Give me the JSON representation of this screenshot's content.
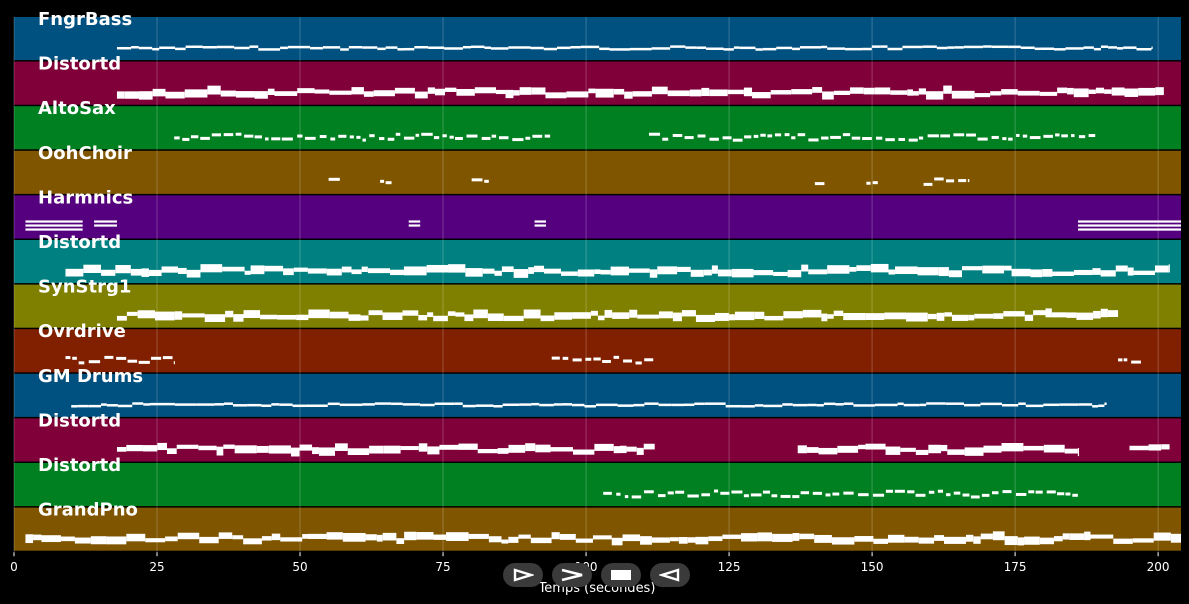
{
  "chart_data": {
    "type": "piano-roll",
    "xlabel": "Temps (secondes)",
    "xlim": [
      0,
      204
    ],
    "xticks": [
      0,
      25,
      50,
      75,
      100,
      125,
      150,
      175,
      200
    ],
    "grid": true,
    "tracks": [
      {
        "name": "FngrBass",
        "color": "#005080",
        "segments": [
          [
            18,
            199
          ]
        ],
        "style": "thin"
      },
      {
        "name": "Distortd",
        "color": "#80003a",
        "segments": [
          [
            18,
            201
          ]
        ],
        "style": "thick"
      },
      {
        "name": "AltoSax",
        "color": "#008020",
        "segments": [
          [
            28,
            94
          ],
          [
            111,
            189
          ]
        ],
        "style": "sparse"
      },
      {
        "name": "OohChoir",
        "color": "#7f5500",
        "segments": [
          [
            55,
            57
          ],
          [
            64,
            66
          ],
          [
            80,
            83
          ],
          [
            140,
            142
          ],
          [
            149,
            151
          ],
          [
            159,
            167
          ]
        ],
        "style": "sparse"
      },
      {
        "name": "Harmnics",
        "color": "#55007f",
        "segments": [
          [
            2,
            12
          ],
          [
            14,
            18
          ],
          [
            69,
            71
          ],
          [
            91,
            93
          ],
          [
            186,
            204
          ]
        ],
        "style": "chords"
      },
      {
        "name": "Distortd",
        "color": "#008080",
        "segments": [
          [
            9,
            202
          ]
        ],
        "style": "thick"
      },
      {
        "name": "SynStrg1",
        "color": "#808000",
        "segments": [
          [
            18,
            193
          ]
        ],
        "style": "thick"
      },
      {
        "name": "Ovrdrive",
        "color": "#802000",
        "segments": [
          [
            9,
            28
          ],
          [
            94,
            112
          ],
          [
            193,
            197
          ]
        ],
        "style": "sparse"
      },
      {
        "name": "GM Drums",
        "color": "#005080",
        "segments": [
          [
            10,
            191
          ]
        ],
        "style": "thin"
      },
      {
        "name": "Distortd",
        "color": "#80003a",
        "segments": [
          [
            18,
            112
          ],
          [
            137,
            186
          ],
          [
            195,
            202
          ]
        ],
        "style": "thick"
      },
      {
        "name": "Distortd",
        "color": "#008020",
        "segments": [
          [
            103,
            186
          ]
        ],
        "style": "sparse"
      },
      {
        "name": "GrandPno",
        "color": "#7f5500",
        "segments": [
          [
            2,
            204
          ]
        ],
        "style": "thick"
      }
    ]
  },
  "controls": [
    {
      "icon": "play-outline-icon"
    },
    {
      "icon": "fast-forward-icon"
    },
    {
      "icon": "stop-icon"
    },
    {
      "icon": "rewind-icon"
    }
  ]
}
